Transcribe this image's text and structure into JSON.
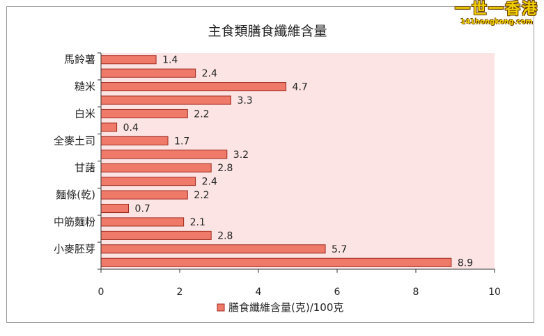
{
  "logo": {
    "main": "一世一香港",
    "url": "141hongkong.com"
  },
  "chart_data": {
    "type": "bar",
    "orientation": "horizontal",
    "title": "主食類膳食纖維含量",
    "series": [
      {
        "name": "膳食纖維含量(克)/100克",
        "values": [
          1.4,
          2.4,
          4.7,
          3.3,
          2.2,
          0.4,
          1.7,
          3.2,
          2.8,
          2.4,
          2.2,
          0.7,
          2.1,
          2.8,
          5.7,
          8.9
        ]
      }
    ],
    "labeled_categories": [
      {
        "index": 1,
        "label": "馬鈴薯"
      },
      {
        "index": 3,
        "label": "糙米"
      },
      {
        "index": 5,
        "label": "白米"
      },
      {
        "index": 7,
        "label": "全麥土司"
      },
      {
        "index": 9,
        "label": "甘藷"
      },
      {
        "index": 11,
        "label": "麵條(乾)"
      },
      {
        "index": 13,
        "label": "中筋麵粉"
      },
      {
        "index": 15,
        "label": "小麥胚芽"
      }
    ],
    "xlim": [
      0,
      10
    ],
    "xticks": [
      "0",
      "2",
      "4",
      "6",
      "8",
      "10"
    ],
    "legend_position": "bottom",
    "colors": {
      "bar": "#f07a6a",
      "bar_edge": "#9e2a1e",
      "plot_bg": "#fce4e4",
      "axis": "#333333"
    }
  }
}
